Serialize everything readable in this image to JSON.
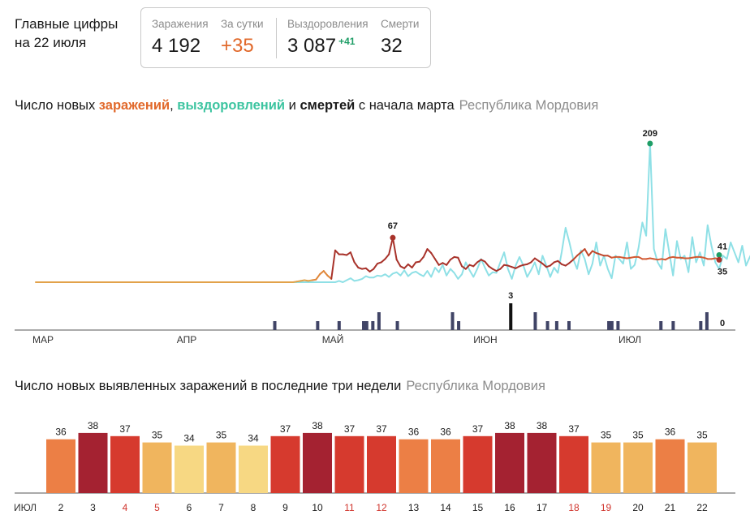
{
  "header": {
    "headline_line1": "Главные цифры",
    "headline_line2": "на 22 июля",
    "infections_label": "Заражения",
    "infections_value": "4 192",
    "daily_label": "За сутки",
    "daily_value": "+35",
    "recoveries_label": "Выздоровления",
    "recoveries_value": "3 087",
    "recoveries_delta": "+41",
    "deaths_label": "Смерти",
    "deaths_value": "32"
  },
  "chart1_title": {
    "part1": "Число новых ",
    "infections": "заражений",
    "comma": ", ",
    "recoveries": "выздоровлений",
    "and": " и ",
    "deaths": "смертей",
    "rest": " с начала марта",
    "region": "Республика Мордовия"
  },
  "chart2_title": {
    "text": "Число новых выявленных заражений в последние три недели",
    "region": "Республика Мордовия"
  },
  "colors": {
    "infections_line": "#c0472b",
    "recoveries_line": "#8fe0e6",
    "deaths_bar": "#404466",
    "accent_orange": "#e1692b",
    "accent_green": "#1f9e67"
  },
  "chart_data": [
    {
      "type": "line",
      "x_axis": {
        "tick_labels": [
          "МАР",
          "АПР",
          "МАЙ",
          "ИЮН",
          "ИЮЛ"
        ]
      },
      "series": [
        {
          "name": "заражений",
          "values": [
            0,
            0,
            0,
            0,
            0,
            0,
            0,
            0,
            0,
            0,
            0,
            0,
            0,
            0,
            0,
            0,
            0,
            0,
            0,
            0,
            0,
            0,
            0,
            0,
            0,
            0,
            0,
            0,
            0,
            0,
            0,
            0,
            0,
            0,
            0,
            0,
            0,
            0,
            0,
            0,
            0,
            0,
            0,
            0,
            0,
            0,
            0,
            0,
            0,
            0,
            0,
            0,
            0,
            0,
            0,
            0,
            0,
            0,
            0,
            0,
            0,
            0,
            0,
            0,
            0,
            0,
            0,
            0,
            1,
            2,
            3,
            2,
            3,
            4,
            12,
            17,
            10,
            5,
            48,
            42,
            42,
            41,
            45,
            30,
            22,
            20,
            21,
            16,
            20,
            28,
            30,
            35,
            42,
            67,
            34,
            24,
            21,
            27,
            22,
            30,
            31,
            38,
            50,
            44,
            35,
            26,
            29,
            26,
            34,
            38,
            37,
            24,
            20,
            26,
            24,
            30,
            34,
            31,
            24,
            20,
            17,
            20,
            26,
            25,
            23,
            21,
            24,
            26,
            27,
            30,
            36,
            32,
            28,
            23,
            25,
            30,
            32,
            27,
            25,
            29,
            34,
            40,
            45,
            50,
            40,
            47,
            44,
            42,
            40,
            40,
            37,
            38,
            38,
            37,
            36,
            37,
            38,
            38,
            35,
            35,
            36,
            35,
            34,
            35,
            34,
            37,
            38,
            37,
            37,
            36,
            36,
            37,
            38,
            38,
            37,
            35,
            35,
            36,
            35
          ],
          "annotations": [
            {
              "label": "67"
            },
            {
              "label": "35"
            }
          ]
        },
        {
          "name": "выздоровлений",
          "values": [
            0,
            0,
            0,
            0,
            0,
            0,
            0,
            0,
            0,
            0,
            0,
            0,
            0,
            0,
            0,
            0,
            0,
            0,
            0,
            0,
            0,
            0,
            0,
            0,
            0,
            0,
            0,
            0,
            0,
            0,
            0,
            0,
            0,
            0,
            0,
            0,
            0,
            0,
            0,
            0,
            0,
            0,
            0,
            0,
            0,
            0,
            0,
            0,
            0,
            0,
            0,
            0,
            0,
            0,
            0,
            0,
            0,
            0,
            0,
            0,
            0,
            0,
            0,
            0,
            0,
            0,
            0,
            0,
            0,
            0,
            0,
            0,
            0,
            0,
            0,
            0,
            0,
            0,
            0,
            2,
            0,
            3,
            6,
            2,
            3,
            5,
            9,
            7,
            7,
            10,
            9,
            12,
            8,
            13,
            15,
            10,
            18,
            9,
            14,
            16,
            12,
            9,
            17,
            8,
            22,
            15,
            26,
            10,
            20,
            14,
            5,
            12,
            30,
            18,
            8,
            20,
            35,
            22,
            10,
            15,
            14,
            30,
            45,
            20,
            5,
            25,
            38,
            25,
            8,
            18,
            30,
            12,
            40,
            25,
            8,
            22,
            14,
            46,
            82,
            60,
            35,
            20,
            48,
            35,
            12,
            28,
            60,
            25,
            40,
            20,
            6,
            40,
            35,
            28,
            60,
            20,
            26,
            52,
            90,
            70,
            209,
            50,
            30,
            20,
            80,
            45,
            10,
            62,
            35,
            40,
            15,
            68,
            30,
            45,
            25,
            86,
            55,
            30,
            20,
            40,
            35,
            60,
            45,
            30,
            55,
            25,
            38,
            50,
            40,
            22,
            48,
            30,
            45,
            22,
            40,
            20,
            25,
            41
          ],
          "annotations": [
            {
              "label": "209"
            },
            {
              "label": "41"
            }
          ]
        },
        {
          "name": "смертей",
          "type": "bar",
          "values": [
            0,
            0,
            0,
            0,
            0,
            0,
            0,
            0,
            0,
            0,
            0,
            0,
            0,
            0,
            0,
            0,
            0,
            0,
            0,
            0,
            0,
            0,
            0,
            0,
            0,
            0,
            0,
            0,
            0,
            0,
            0,
            0,
            0,
            0,
            0,
            0,
            0,
            0,
            0,
            0,
            0,
            0,
            0,
            0,
            0,
            0,
            0,
            0,
            0,
            0,
            0,
            0,
            0,
            0,
            0,
            0,
            0,
            0,
            0,
            0,
            0,
            0,
            0,
            0,
            0,
            0,
            0,
            0,
            0,
            0,
            0,
            0,
            0,
            0,
            0,
            0,
            0,
            0,
            1,
            0,
            0,
            0,
            0,
            0,
            0,
            0,
            0,
            0,
            0,
            0,
            0,
            0,
            1,
            0,
            0,
            0,
            0,
            0,
            0,
            1,
            0,
            0,
            0,
            0,
            0,
            0,
            0,
            1,
            1,
            0,
            1,
            0,
            2,
            0,
            0,
            0,
            0,
            0,
            1,
            0,
            0,
            0,
            0,
            0,
            0,
            0,
            0,
            0,
            0,
            0,
            0,
            0,
            0,
            0,
            0,
            0,
            2,
            0,
            1,
            0,
            0,
            0,
            0,
            0,
            0,
            0,
            0,
            0,
            0,
            0,
            0,
            0,
            0,
            0,
            0,
            3,
            0,
            0,
            0,
            0,
            0,
            0,
            0,
            2,
            0,
            0,
            0,
            1,
            0,
            0,
            1,
            0,
            0,
            0,
            1,
            0,
            0,
            0,
            0,
            0,
            0,
            0,
            0,
            0,
            0,
            0,
            0,
            1,
            1,
            0,
            1,
            0,
            0,
            0,
            0,
            0,
            0,
            0,
            0,
            0,
            0,
            0,
            0,
            0,
            1,
            0,
            0,
            0,
            1,
            0,
            0,
            0,
            0,
            0,
            0,
            0,
            0,
            1,
            0,
            2,
            0,
            0,
            0,
            0
          ],
          "annotations": [
            {
              "label": "3"
            },
            {
              "label": "0"
            }
          ]
        }
      ]
    },
    {
      "type": "bar",
      "x_axis_label": "ИЮЛ",
      "categories": [
        "2",
        "3",
        "4",
        "5",
        "6",
        "7",
        "8",
        "9",
        "10",
        "11",
        "12",
        "13",
        "14",
        "15",
        "16",
        "17",
        "18",
        "19",
        "20",
        "21",
        "22"
      ],
      "values": [
        36,
        38,
        37,
        35,
        34,
        35,
        34,
        37,
        38,
        37,
        37,
        36,
        36,
        37,
        38,
        38,
        37,
        35,
        35,
        36,
        35
      ],
      "weekend_label_color": "#d0342c",
      "weekend_categories": [
        "4",
        "5",
        "11",
        "12",
        "18",
        "19"
      ]
    }
  ]
}
